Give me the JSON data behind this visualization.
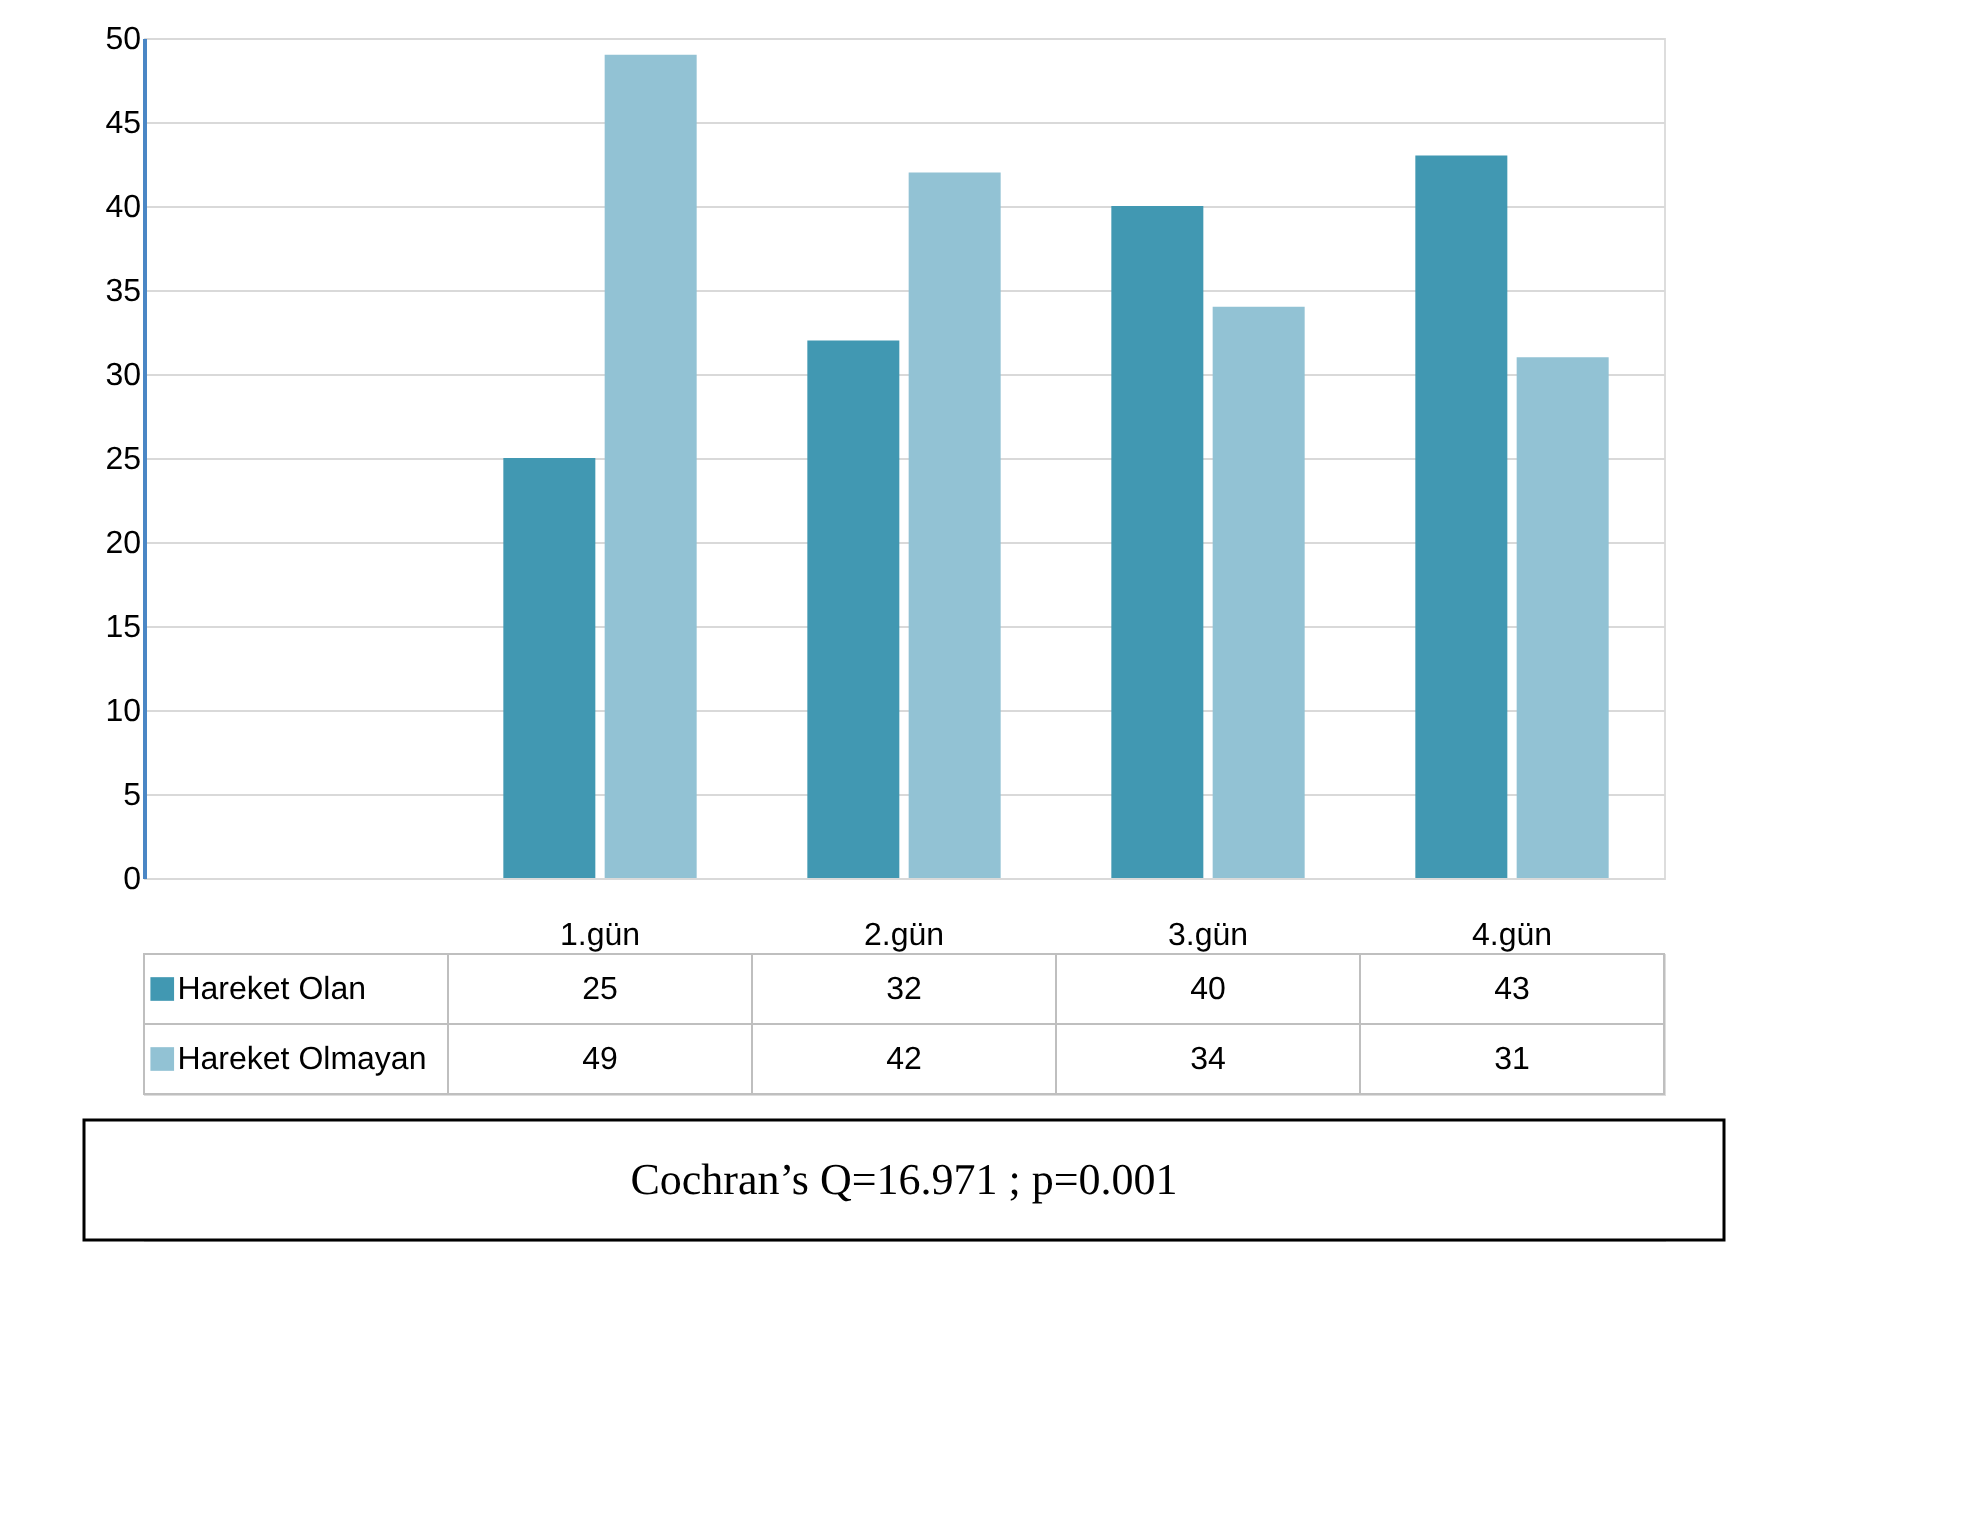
{
  "chart_data": {
    "type": "bar",
    "categories": [
      "1.gün",
      "2.gün",
      "3.gün",
      "4.gün"
    ],
    "series": [
      {
        "name": "Hareket Olan",
        "color": "#4198b2",
        "values": [
          25,
          32,
          40,
          43
        ]
      },
      {
        "name": "Hareket Olmayan",
        "color": "#92c2d4",
        "values": [
          49,
          42,
          34,
          31
        ]
      }
    ],
    "ylim": [
      0,
      50
    ],
    "yticks": [
      0,
      5,
      10,
      15,
      20,
      25,
      30,
      35,
      40,
      45,
      50
    ],
    "grid": "y",
    "legend": "bottom left",
    "data_labels": true,
    "annotations": [
      "Cochran’s Q=16.971 ; p=0.001"
    ]
  }
}
